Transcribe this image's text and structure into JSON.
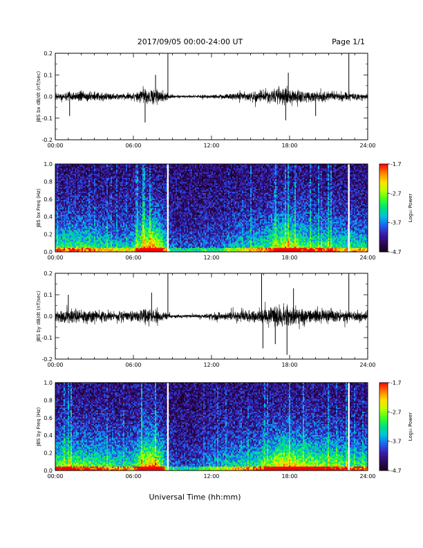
{
  "header": {
    "date_range": "2017/09/05  00:00-24:00 UT",
    "page": "Page 1/1"
  },
  "footer": {
    "xlabel": "Universal Time (hh:mm)"
  },
  "colors": {
    "trace": "#000000",
    "colormap": [
      "#1a0020",
      "#2a0a5c",
      "#3a1aa8",
      "#2060f0",
      "#00c0e0",
      "#00e080",
      "#40ff20",
      "#c0ff00",
      "#ffe000",
      "#ff8000",
      "#ff0000"
    ]
  },
  "chart_data": [
    {
      "type": "line",
      "panel": "bx-derivative",
      "ylabel": "JBS bx dB/dt (nT/sec)",
      "xlim": [
        0,
        24
      ],
      "ylim": [
        -0.2,
        0.2
      ],
      "xticks": [
        "00:00",
        "06:00",
        "12:00",
        "18:00",
        "24:00"
      ],
      "yticks": [
        "0.2",
        "0.1",
        "0.0",
        "-0.1",
        "-0.2"
      ],
      "envelope": {
        "hours": [
          0,
          1,
          2,
          3,
          4,
          5,
          6,
          6.8,
          7.5,
          8.2,
          8.7,
          9.5,
          10.5,
          11.5,
          12,
          13,
          14,
          15,
          16,
          17,
          17.5,
          18,
          18.5,
          19,
          20,
          21,
          22,
          23,
          24
        ],
        "amplitude": [
          0.03,
          0.035,
          0.04,
          0.035,
          0.03,
          0.025,
          0.03,
          0.06,
          0.075,
          0.05,
          0.02,
          0.01,
          0.01,
          0.015,
          0.015,
          0.02,
          0.03,
          0.035,
          0.045,
          0.06,
          0.07,
          0.065,
          0.06,
          0.045,
          0.04,
          0.04,
          0.035,
          0.03,
          0.025
        ]
      },
      "spikes": [
        {
          "hour": 8.65,
          "value": 0.2
        },
        {
          "hour": 22.55,
          "value": 0.2
        },
        {
          "hour": 1.1,
          "value": -0.09
        },
        {
          "hour": 6.9,
          "value": -0.12
        },
        {
          "hour": 7.7,
          "value": 0.1
        },
        {
          "hour": 17.7,
          "value": -0.11
        },
        {
          "hour": 17.9,
          "value": 0.11
        },
        {
          "hour": 20.0,
          "value": -0.09
        }
      ]
    },
    {
      "type": "heatmap",
      "panel": "bx-spectrogram",
      "ylabel": "JBS bx Freq (Hz)",
      "xlim": [
        0,
        24
      ],
      "ylim": [
        0,
        1.0
      ],
      "xticks": [
        "00:00",
        "06:00",
        "12:00",
        "18:00",
        "24:00"
      ],
      "yticks": [
        "1.0",
        "0.8",
        "0.6",
        "0.4",
        "0.2",
        "0.0"
      ],
      "colorbar": {
        "label": "Log₁₀ Power",
        "range": [
          -4.7,
          -1.7
        ],
        "ticks": [
          "-1.7",
          "-2.7",
          "-3.7",
          "-4.7"
        ]
      },
      "data_gaps_hours": [
        8.65,
        22.55
      ],
      "activity": {
        "hours": [
          0,
          1,
          2,
          3,
          4,
          5,
          6,
          6.8,
          7.5,
          8.2,
          8.7,
          9.5,
          10.5,
          11.5,
          12,
          13,
          14,
          15,
          16,
          17,
          17.5,
          18,
          18.5,
          19,
          20,
          21,
          22,
          23,
          24
        ],
        "level": [
          0.45,
          0.5,
          0.5,
          0.45,
          0.4,
          0.35,
          0.4,
          0.75,
          0.9,
          0.6,
          0.25,
          0.15,
          0.15,
          0.2,
          0.2,
          0.25,
          0.35,
          0.4,
          0.45,
          0.65,
          0.75,
          0.7,
          0.65,
          0.55,
          0.5,
          0.5,
          0.45,
          0.45,
          0.4
        ]
      }
    },
    {
      "type": "line",
      "panel": "by-derivative",
      "ylabel": "JBS by dB/dt (nT/sec)",
      "xlim": [
        0,
        24
      ],
      "ylim": [
        -0.2,
        0.2
      ],
      "xticks": [
        "00:00",
        "06:00",
        "12:00",
        "18:00",
        "24:00"
      ],
      "yticks": [
        "0.2",
        "0.1",
        "0.0",
        "-0.1",
        "-0.2"
      ],
      "envelope": {
        "hours": [
          0,
          1,
          2,
          3,
          4,
          5,
          6,
          6.8,
          7.5,
          8.2,
          8.7,
          9.5,
          10.5,
          11.5,
          12,
          13,
          14,
          15,
          16,
          17,
          17.5,
          18,
          18.5,
          19,
          20,
          21,
          22,
          23,
          24
        ],
        "amplitude": [
          0.05,
          0.06,
          0.055,
          0.05,
          0.045,
          0.04,
          0.04,
          0.06,
          0.07,
          0.04,
          0.02,
          0.012,
          0.012,
          0.02,
          0.03,
          0.035,
          0.04,
          0.045,
          0.06,
          0.08,
          0.09,
          0.085,
          0.075,
          0.07,
          0.06,
          0.055,
          0.05,
          0.045,
          0.04
        ]
      },
      "spikes": [
        {
          "hour": 8.65,
          "value": 0.2
        },
        {
          "hour": 22.55,
          "value": 0.2
        },
        {
          "hour": 15.85,
          "value": 0.2
        },
        {
          "hour": 15.95,
          "value": -0.15
        },
        {
          "hour": 17.8,
          "value": -0.18
        },
        {
          "hour": 1.0,
          "value": 0.1
        },
        {
          "hour": 7.4,
          "value": 0.11
        },
        {
          "hour": 16.9,
          "value": -0.13
        },
        {
          "hour": 18.3,
          "value": 0.13
        }
      ]
    },
    {
      "type": "heatmap",
      "panel": "by-spectrogram",
      "ylabel": "JBS by Freq (Hz)",
      "xlim": [
        0,
        24
      ],
      "ylim": [
        0,
        1.0
      ],
      "xticks": [
        "00:00",
        "06:00",
        "12:00",
        "18:00",
        "24:00"
      ],
      "yticks": [
        "1.0",
        "0.8",
        "0.6",
        "0.4",
        "0.2",
        "0.0"
      ],
      "colorbar": {
        "label": "Log₁₀ Power",
        "range": [
          -4.7,
          -1.7
        ],
        "ticks": [
          "-1.7",
          "-2.7",
          "-3.7",
          "-4.7"
        ]
      },
      "data_gaps_hours": [
        8.65,
        22.55
      ],
      "activity": {
        "hours": [
          0,
          1,
          2,
          3,
          4,
          5,
          6,
          6.8,
          7.5,
          8.2,
          8.7,
          9.5,
          10.5,
          11.5,
          12,
          13,
          14,
          15,
          16,
          17,
          17.5,
          18,
          18.5,
          19,
          20,
          21,
          22,
          23,
          24
        ],
        "level": [
          0.55,
          0.6,
          0.55,
          0.55,
          0.5,
          0.45,
          0.45,
          0.8,
          0.9,
          0.6,
          0.25,
          0.15,
          0.15,
          0.25,
          0.3,
          0.35,
          0.4,
          0.45,
          0.55,
          0.75,
          0.85,
          0.8,
          0.75,
          0.7,
          0.65,
          0.6,
          0.55,
          0.5,
          0.5
        ]
      }
    }
  ]
}
